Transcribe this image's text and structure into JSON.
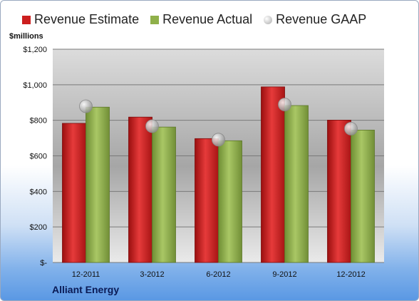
{
  "chart_data": {
    "type": "bar",
    "categories": [
      "12-2011",
      "3-2012",
      "6-2012",
      "9-2012",
      "12-2012"
    ],
    "series": [
      {
        "name": "Revenue Estimate",
        "kind": "bar",
        "color": "#cc1f1f",
        "values": [
          783,
          818,
          697,
          988,
          801
        ]
      },
      {
        "name": "Revenue Actual",
        "kind": "bar",
        "color": "#8fb04a",
        "values": [
          874,
          762,
          685,
          883,
          745
        ]
      },
      {
        "name": "Revenue GAAP",
        "kind": "marker",
        "color": "#c8c8c8",
        "values": [
          879,
          767,
          691,
          889,
          753
        ]
      }
    ],
    "ylabel": "$millions",
    "ylim": [
      0,
      1200
    ],
    "yticks": [
      0,
      200,
      400,
      600,
      800,
      1000,
      1200
    ],
    "ytick_labels": [
      "$-",
      "$200",
      "$400",
      "$600",
      "$800",
      "$1,000",
      "$1,200"
    ],
    "grid": true,
    "legend_position": "top"
  },
  "footer": {
    "company": "Alliant Energy"
  }
}
